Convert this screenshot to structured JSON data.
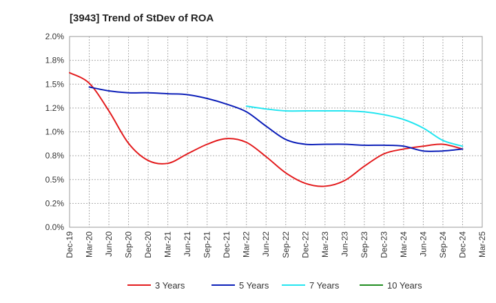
{
  "chart_data": {
    "type": "line",
    "title": "[3943]  Trend of StDev of ROA",
    "xlabel": "",
    "ylabel": "",
    "ylim": [
      0,
      2.0
    ],
    "y_ticks": [
      "0.0%",
      "0.2%",
      "0.5%",
      "0.8%",
      "1.0%",
      "1.2%",
      "1.5%",
      "1.8%",
      "2.0%"
    ],
    "x_ticks": [
      "Dec-19",
      "Mar-20",
      "Jun-20",
      "Sep-20",
      "Dec-20",
      "Mar-21",
      "Jun-21",
      "Sep-21",
      "Dec-21",
      "Mar-22",
      "Jun-22",
      "Sep-22",
      "Dec-22",
      "Mar-23",
      "Jun-23",
      "Sep-23",
      "Dec-23",
      "Mar-24",
      "Jun-24",
      "Sep-24",
      "Dec-24",
      "Mar-25"
    ],
    "grid": true,
    "legend_position": "bottom",
    "series": [
      {
        "name": "3 Years",
        "color": "#e31a1c",
        "x": [
          "Dec-19",
          "Mar-20",
          "Jun-20",
          "Sep-20",
          "Dec-20",
          "Mar-21",
          "Jun-21",
          "Sep-21",
          "Dec-21",
          "Mar-22",
          "Jun-22",
          "Sep-22",
          "Dec-22",
          "Mar-23",
          "Jun-23",
          "Sep-23",
          "Dec-23",
          "Mar-24",
          "Jun-24",
          "Sep-24",
          "Dec-24"
        ],
        "values": [
          1.62,
          1.51,
          1.22,
          0.88,
          0.7,
          0.67,
          0.77,
          0.87,
          0.93,
          0.89,
          0.74,
          0.57,
          0.46,
          0.43,
          0.49,
          0.64,
          0.77,
          0.82,
          0.85,
          0.87,
          0.82
        ]
      },
      {
        "name": "5 Years",
        "color": "#0a1db8",
        "x": [
          "Mar-20",
          "Jun-20",
          "Sep-20",
          "Dec-20",
          "Mar-21",
          "Jun-21",
          "Sep-21",
          "Dec-21",
          "Mar-22",
          "Jun-22",
          "Sep-22",
          "Dec-22",
          "Mar-23",
          "Jun-23",
          "Sep-23",
          "Dec-23",
          "Mar-24",
          "Jun-24",
          "Sep-24",
          "Dec-24"
        ],
        "values": [
          1.47,
          1.43,
          1.41,
          1.41,
          1.4,
          1.39,
          1.35,
          1.29,
          1.21,
          1.06,
          0.92,
          0.87,
          0.87,
          0.87,
          0.86,
          0.86,
          0.85,
          0.8,
          0.8,
          0.82
        ]
      },
      {
        "name": "7 Years",
        "color": "#22e5f0",
        "x": [
          "Mar-22",
          "Jun-22",
          "Sep-22",
          "Dec-22",
          "Mar-23",
          "Jun-23",
          "Sep-23",
          "Dec-23",
          "Mar-24",
          "Jun-24",
          "Sep-24",
          "Dec-24"
        ],
        "values": [
          1.27,
          1.24,
          1.22,
          1.22,
          1.22,
          1.22,
          1.21,
          1.18,
          1.13,
          1.04,
          0.91,
          0.85
        ]
      },
      {
        "name": "10 Years",
        "color": "#1e8c1e",
        "x": [],
        "values": []
      }
    ]
  }
}
